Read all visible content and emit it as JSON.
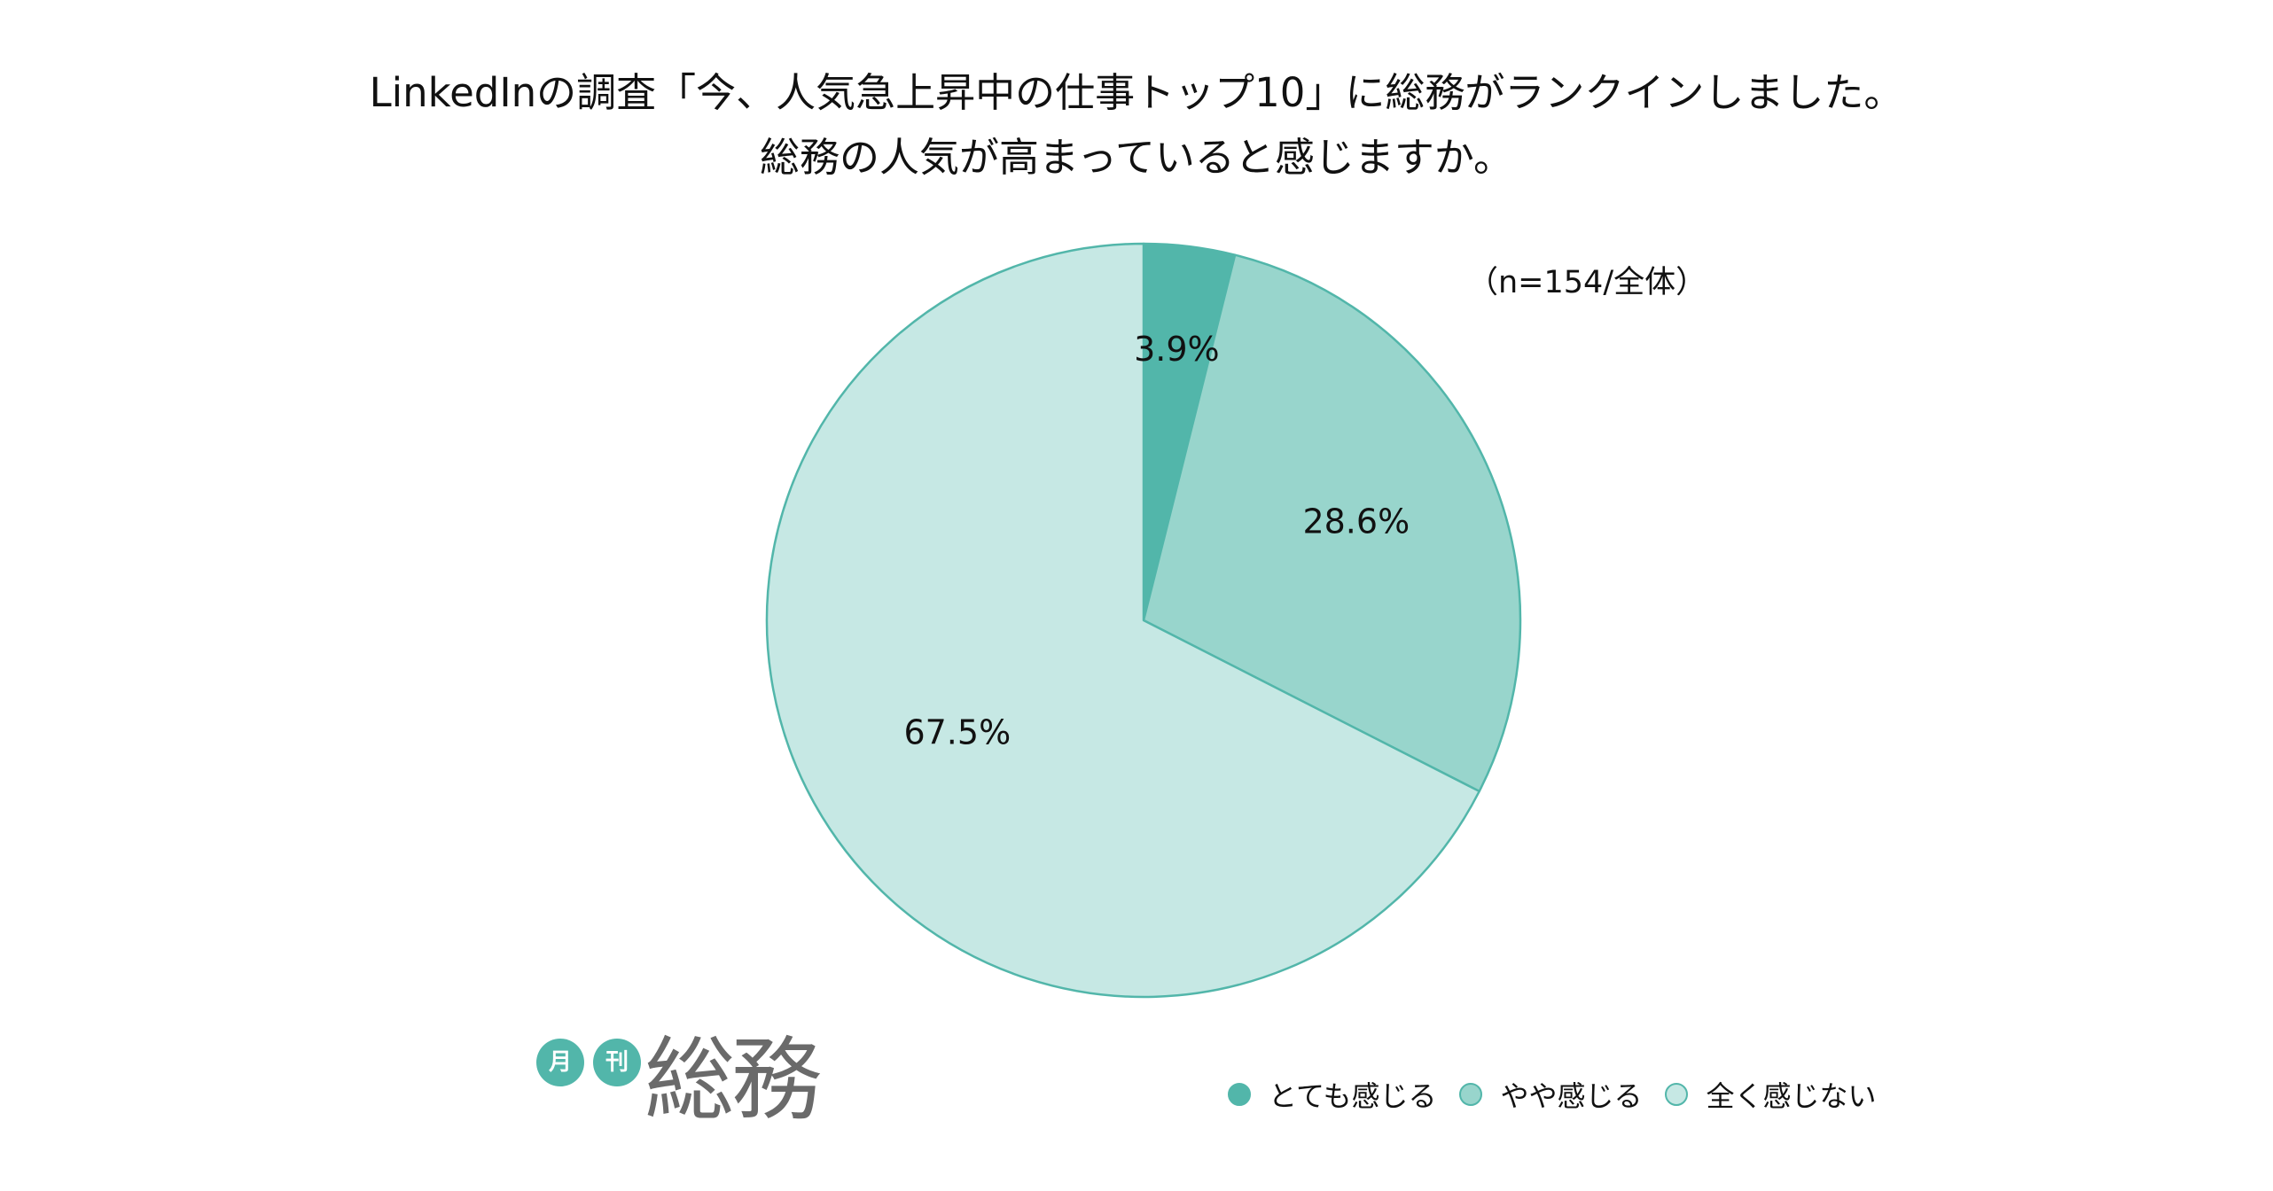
{
  "chart_data": {
    "type": "pie",
    "title": "LinkedInの調査「今、人気急上昇中の仕事トップ10」に総務がランクインしました。",
    "subtitle": "総務の人気が高まっていると感じますか。",
    "note": "（n=154/全体）",
    "legend_position": "bottom-right",
    "slices": [
      {
        "label": "とても感じる",
        "value": 3.9,
        "display": "3.9%",
        "color": "#52b6aa"
      },
      {
        "label": "やや感じる",
        "value": 28.6,
        "display": "28.6%",
        "color": "#98d5cc"
      },
      {
        "label": "全く感じない",
        "value": 67.5,
        "display": "67.5%",
        "color": "#c6e8e4"
      }
    ],
    "stroke_color": "#52b6aa"
  },
  "logo": {
    "badge_1": "月",
    "badge_2": "刊",
    "word": "総務"
  }
}
